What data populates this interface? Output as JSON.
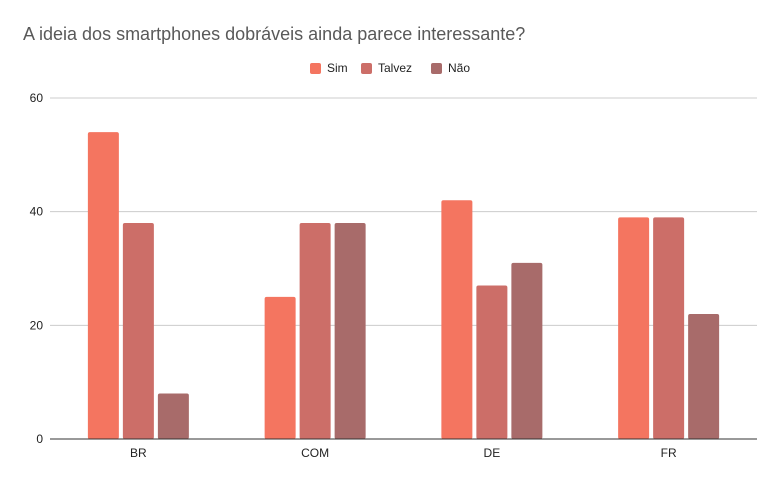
{
  "chart_data": {
    "type": "bar",
    "title": "A ideia dos smartphones dobráveis ainda parece interessante?",
    "xlabel": "",
    "ylabel": "",
    "categories": [
      "BR",
      "COM",
      "DE",
      "FR"
    ],
    "series": [
      {
        "name": "Sim",
        "color": "#f47560",
        "values": [
          54,
          25,
          42,
          39
        ]
      },
      {
        "name": "Talvez",
        "color": "#cc6e68",
        "values": [
          38,
          38,
          27,
          39
        ]
      },
      {
        "name": "Não",
        "color": "#a86b6a",
        "values": [
          8,
          38,
          31,
          22
        ]
      }
    ],
    "ylim": [
      0,
      60
    ],
    "yticks": [
      0,
      20,
      40,
      60
    ],
    "grid": true,
    "legend_position": "top-center"
  }
}
